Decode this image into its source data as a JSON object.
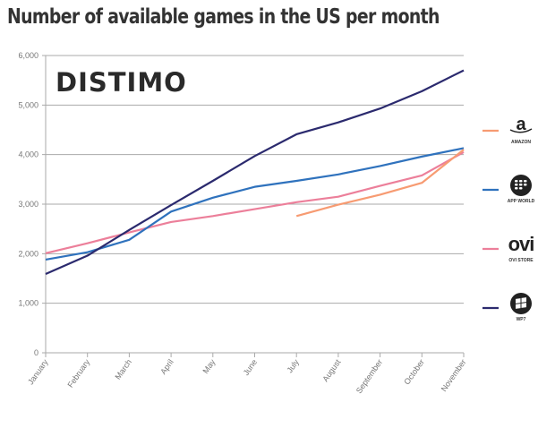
{
  "chart_data": {
    "type": "line",
    "title": "Number of available games in the US per month",
    "logo": "DISTIMO",
    "categories": [
      "January",
      "February",
      "March",
      "April",
      "May",
      "June",
      "July",
      "August",
      "September",
      "October",
      "November"
    ],
    "ylim": [
      0,
      6000
    ],
    "yticks": [
      0,
      1000,
      2000,
      3000,
      4000,
      5000,
      6000
    ],
    "ytick_labels": [
      "0",
      "1,000",
      "2,000",
      "3,000",
      "4,000",
      "5,000",
      "6,000"
    ],
    "grid": "horizontal",
    "legend_position": "right",
    "series": [
      {
        "name": "AMAZON",
        "icon": "amazon-logo-icon",
        "color": "#f79b72",
        "values": [
          null,
          null,
          null,
          null,
          null,
          null,
          2760,
          2990,
          3190,
          3430,
          4100
        ]
      },
      {
        "name": "APP WORLD",
        "icon": "blackberry-logo-icon",
        "color": "#2f72bd",
        "values": [
          1880,
          2030,
          2280,
          2850,
          3130,
          3350,
          3470,
          3600,
          3770,
          3960,
          4130
        ]
      },
      {
        "name": "OVI STORE",
        "icon": "ovi-logo-icon",
        "logo_text": "ovi",
        "color": "#ec7f9a",
        "values": [
          2010,
          2210,
          2430,
          2640,
          2760,
          2900,
          3040,
          3150,
          3370,
          3580,
          4050
        ]
      },
      {
        "name": "WP7",
        "icon": "windows-logo-icon",
        "color": "#2b2a6e",
        "values": [
          1590,
          1960,
          2480,
          2980,
          3470,
          3970,
          4410,
          4650,
          4930,
          5280,
          5700
        ]
      }
    ]
  }
}
